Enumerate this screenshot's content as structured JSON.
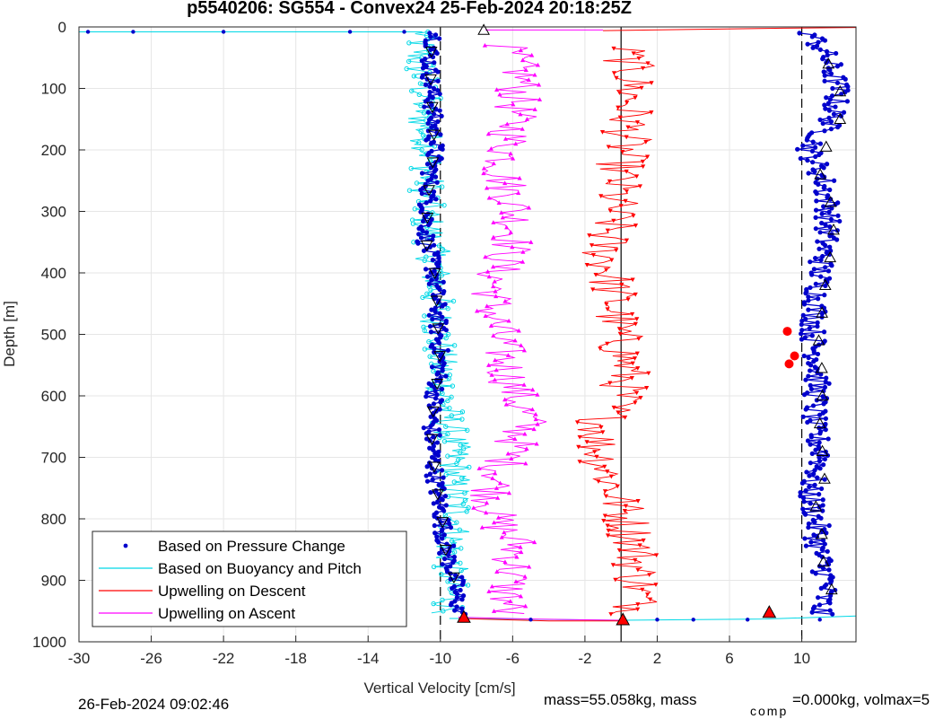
{
  "chart_data": {
    "type": "scatter",
    "title": "p5540206: SG554 - Convex24 25-Feb-2024 20:18:25Z",
    "xlabel": "Vertical Velocity [cm/s]",
    "ylabel": "Depth [m]",
    "xlim": [
      -30,
      13
    ],
    "ylim": [
      0,
      1000
    ],
    "y_reversed": true,
    "grid": true,
    "xticks": [
      -30,
      -26,
      -22,
      -18,
      -14,
      -10,
      -6,
      -2,
      2,
      6,
      10
    ],
    "xtick_labels": [
      "-30",
      "-26",
      "-22",
      "-18",
      "-14",
      "-10",
      "-6",
      "-2",
      "2",
      "6",
      "10"
    ],
    "yticks": [
      0,
      100,
      200,
      300,
      400,
      500,
      600,
      700,
      800,
      900,
      1000
    ],
    "ytick_labels": [
      "0",
      "100",
      "200",
      "300",
      "400",
      "500",
      "600",
      "700",
      "800",
      "900",
      "1000"
    ],
    "legend_position": "bottom-left",
    "reference_lines": [
      {
        "x": -10,
        "style": "dashed",
        "color": "#000000"
      },
      {
        "x": 0,
        "style": "solid",
        "color": "#000000"
      },
      {
        "x": 10,
        "style": "dashed",
        "color": "#000000"
      }
    ],
    "series": [
      {
        "name": "Based on Pressure Change",
        "color": "#0000cc",
        "marker": "dot",
        "depth": [
          10,
          50,
          100,
          150,
          200,
          250,
          300,
          350,
          400,
          450,
          500,
          550,
          600,
          650,
          700,
          750,
          800,
          850,
          900,
          950
        ],
        "descent": [
          -10.2,
          -10.6,
          -10.5,
          -10.4,
          -10.3,
          -10.6,
          -10.7,
          -10.8,
          -10.3,
          -10.2,
          -10.1,
          -10.0,
          -10.3,
          -10.5,
          -10.4,
          -10.2,
          -9.9,
          -9.7,
          -9.2,
          -9.0
        ],
        "ascent": [
          10.5,
          11.4,
          12.0,
          11.7,
          10.4,
          11.2,
          11.5,
          11.3,
          11.0,
          10.8,
          10.6,
          10.9,
          10.8,
          10.6,
          11.2,
          10.4,
          10.8,
          10.9,
          11.4,
          11.0
        ]
      },
      {
        "name": "Based on Buoyancy and Pitch",
        "color": "#00d8e6",
        "marker": "circle",
        "depth": [
          10,
          50,
          100,
          150,
          200,
          250,
          300,
          350,
          400,
          450,
          500,
          550,
          600,
          650,
          700,
          750,
          800,
          850,
          900,
          950
        ],
        "values": [
          -11.0,
          -11.2,
          -10.9,
          -11.0,
          -10.6,
          -10.7,
          -10.8,
          -10.5,
          -10.3,
          -10.2,
          -10.1,
          -10.0,
          -9.8,
          -9.5,
          -9.2,
          -9.3,
          -9.0,
          -9.5,
          -9.4,
          -9.5
        ]
      },
      {
        "name": "Upwelling on Descent",
        "color": "#ff0000",
        "marker": "triangle-down",
        "depth": [
          40,
          80,
          120,
          160,
          200,
          240,
          280,
          320,
          360,
          400,
          440,
          480,
          520,
          560,
          600,
          640,
          680,
          720,
          760,
          800,
          840,
          880,
          920,
          950
        ],
        "values": [
          0.2,
          0.6,
          0.5,
          0.4,
          0.2,
          -0.2,
          -0.3,
          -0.5,
          -1.0,
          -0.6,
          -0.4,
          -0.3,
          0.0,
          0.3,
          0.0,
          -1.0,
          -1.3,
          -0.8,
          -0.3,
          0.3,
          0.8,
          0.9,
          1.0,
          0.8
        ]
      },
      {
        "name": "Upwelling on Ascent",
        "color": "#ff00ff",
        "marker": "triangle-up",
        "depth": [
          30,
          80,
          120,
          160,
          200,
          240,
          280,
          320,
          360,
          400,
          440,
          480,
          520,
          560,
          600,
          640,
          680,
          720,
          760,
          800,
          840,
          880,
          920,
          950
        ],
        "values": [
          -6.5,
          -5.5,
          -5.8,
          -6.0,
          -6.3,
          -6.6,
          -6.0,
          -5.8,
          -6.1,
          -6.9,
          -7.1,
          -7.0,
          -6.6,
          -6.3,
          -5.8,
          -5.2,
          -5.9,
          -6.6,
          -7.1,
          -7.0,
          -5.8,
          -6.0,
          -6.3,
          -6.3
        ]
      }
    ],
    "legend": [
      "Based on Pressure Change",
      "Based on Buoyancy and Pitch",
      "Upwelling on Descent",
      "Upwelling on Ascent"
    ]
  },
  "footer": {
    "timestamp": "26-Feb-2024 09:02:46",
    "mass_text": "mass=55.058kg, mass",
    "comp_sub": "comp",
    "mass_comp_text": "=0.000kg, volmax=5"
  }
}
